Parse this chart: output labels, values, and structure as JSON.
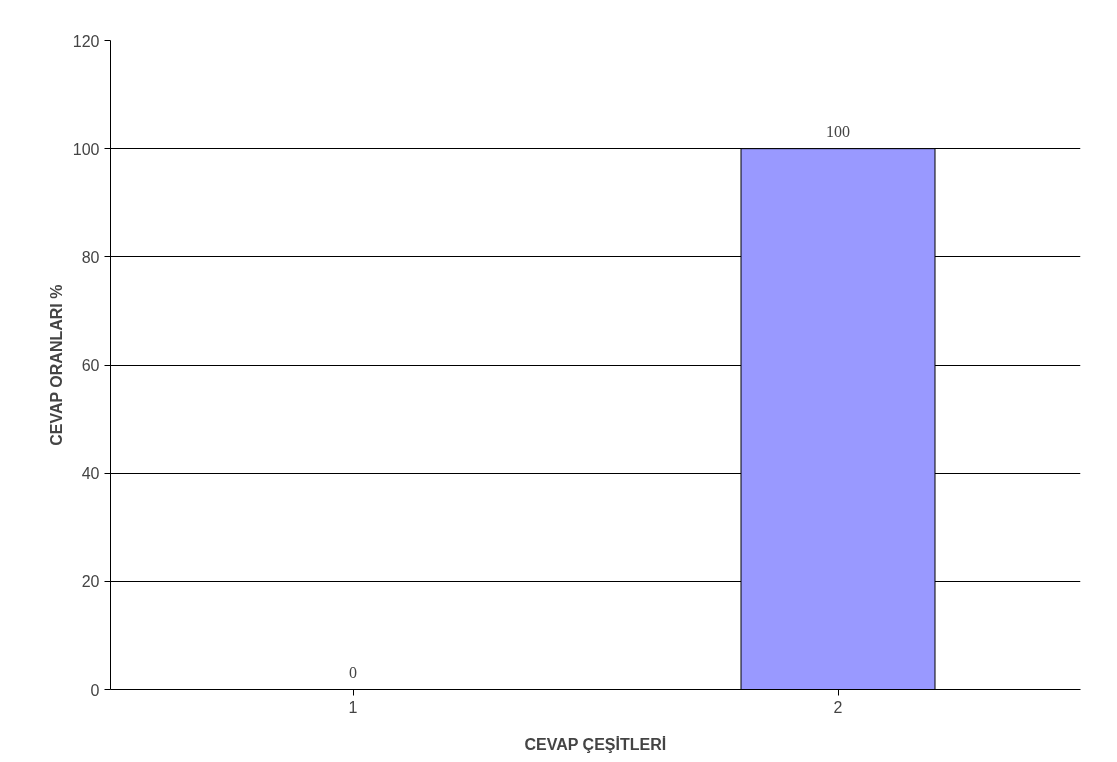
{
  "chart_data": {
    "type": "bar",
    "xlabel": "CEVAP ÇEŞİTLERİ",
    "ylabel": "CEVAP ORANLARI %",
    "categories": [
      "1",
      "2"
    ],
    "series": [
      {
        "color": "#9999ff",
        "values": [
          0,
          100
        ]
      }
    ],
    "ylim": [
      0,
      120
    ],
    "yticks": [
      0,
      20,
      40,
      60,
      80,
      100,
      120
    ],
    "grid": "y",
    "data_labels": true
  }
}
